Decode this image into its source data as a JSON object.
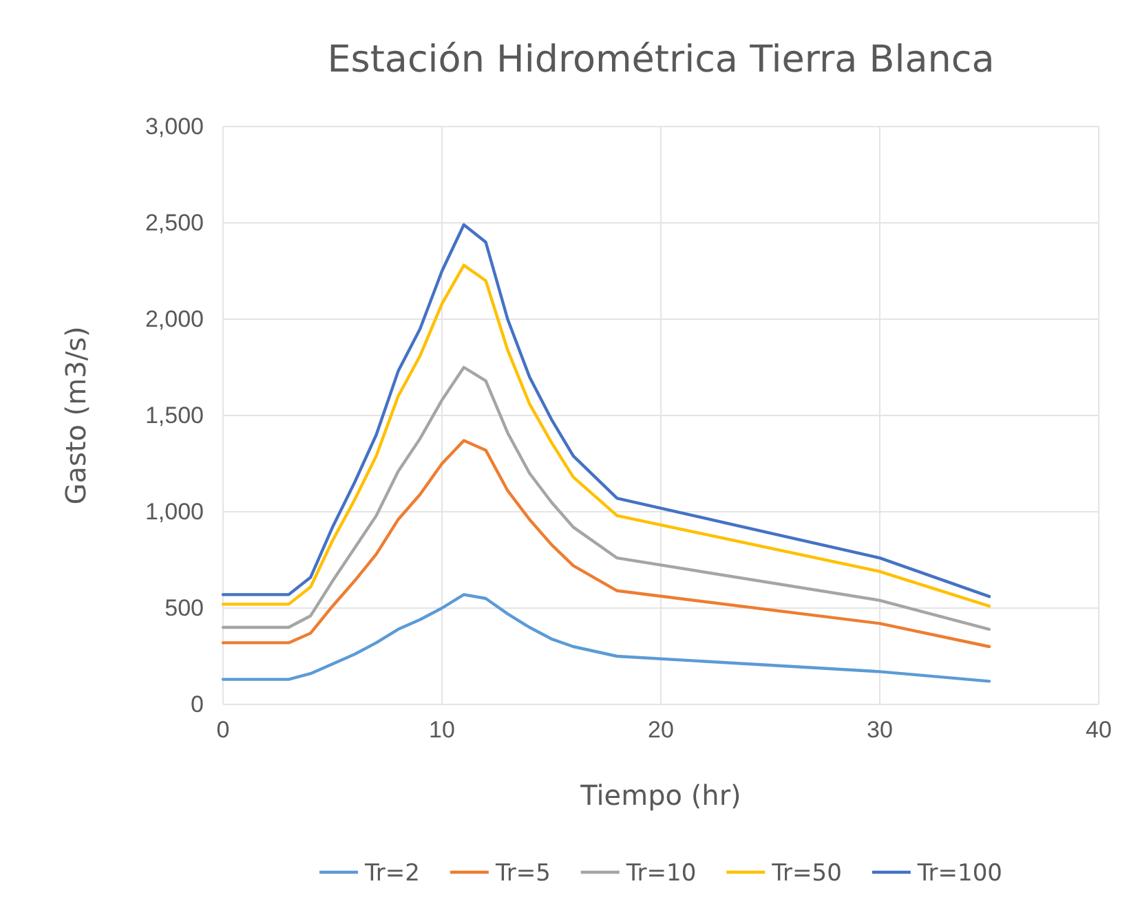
{
  "chart_data": {
    "type": "line",
    "title": "Estación Hidrométrica Tierra Blanca",
    "xlabel": "Tiempo (hr)",
    "ylabel": "Gasto (m3/s)",
    "x": [
      0,
      3,
      4,
      5,
      6,
      7,
      8,
      9,
      10,
      11,
      12,
      13,
      14,
      15,
      16,
      18,
      30,
      35
    ],
    "series": [
      {
        "name": "Tr=2",
        "color": "#5b9bd5",
        "values": [
          130,
          130,
          160,
          210,
          260,
          320,
          390,
          440,
          500,
          570,
          550,
          470,
          400,
          340,
          300,
          250,
          170,
          120
        ]
      },
      {
        "name": "Tr=5",
        "color": "#ed7d31",
        "values": [
          320,
          320,
          370,
          510,
          640,
          780,
          960,
          1090,
          1250,
          1370,
          1320,
          1110,
          960,
          830,
          720,
          590,
          420,
          300
        ]
      },
      {
        "name": "Tr=10",
        "color": "#a5a5a5",
        "values": [
          400,
          400,
          460,
          640,
          810,
          980,
          1210,
          1380,
          1580,
          1750,
          1680,
          1410,
          1200,
          1050,
          920,
          760,
          540,
          390
        ]
      },
      {
        "name": "Tr=50",
        "color": "#ffc000",
        "values": [
          520,
          520,
          610,
          850,
          1060,
          1290,
          1600,
          1810,
          2080,
          2280,
          2200,
          1840,
          1560,
          1360,
          1180,
          980,
          690,
          510
        ]
      },
      {
        "name": "Tr=100",
        "color": "#4472c4",
        "values": [
          570,
          570,
          660,
          920,
          1150,
          1400,
          1730,
          1950,
          2250,
          2490,
          2400,
          2000,
          1700,
          1480,
          1290,
          1070,
          760,
          560
        ]
      }
    ],
    "xlim": [
      0,
      40
    ],
    "xticks": [
      0,
      10,
      20,
      30,
      40
    ],
    "ylim": [
      0,
      3000
    ],
    "yticks": [
      0,
      {
        "value": 500,
        "label": "500"
      },
      {
        "value": 1000,
        "label": "1,000"
      },
      {
        "value": 1500,
        "label": "1,500"
      },
      {
        "value": 2000,
        "label": "2,000"
      },
      {
        "value": 2500,
        "label": "2,500"
      },
      {
        "value": 3000,
        "label": "3,000"
      }
    ],
    "grid": true,
    "legend": "bottom",
    "marker": "none",
    "line_style": "solid"
  }
}
